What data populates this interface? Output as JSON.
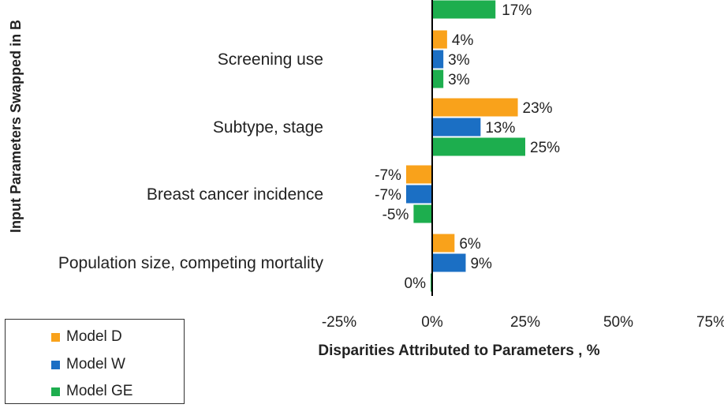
{
  "chart_data": {
    "type": "bar",
    "orientation": "horizontal",
    "xlabel": "Disparities Attributed to Parameters , %",
    "ylabel": "Input Parameters Swapped in B",
    "xlim": [
      -25,
      75
    ],
    "xticks": [
      "-25%",
      "0%",
      "25%",
      "50%",
      "75%"
    ],
    "categories": [
      "Screening use",
      "Subtype, stage",
      "Breast cancer incidence",
      "Population size, competing  mortality"
    ],
    "series": [
      {
        "name": "Model D",
        "color": "#F9A21B",
        "values": [
          4,
          23,
          -7,
          6
        ],
        "labels": [
          "4%",
          "23%",
          "-7%",
          "6%"
        ]
      },
      {
        "name": "Model W",
        "color": "#1B6FC4",
        "values": [
          3,
          13,
          -7,
          9
        ],
        "labels": [
          "3%",
          "13%",
          "-7%",
          "9%"
        ]
      },
      {
        "name": "Model GE",
        "color": "#1DAE4E",
        "values": [
          3,
          25,
          -5,
          0
        ],
        "labels": [
          "3%",
          "25%",
          "-5%",
          "0%"
        ]
      }
    ],
    "partial_top": {
      "values": [
        17
      ],
      "labels": [
        "17%"
      ],
      "series_index": 2
    },
    "legend_position": "bottom-left",
    "grid": false
  }
}
